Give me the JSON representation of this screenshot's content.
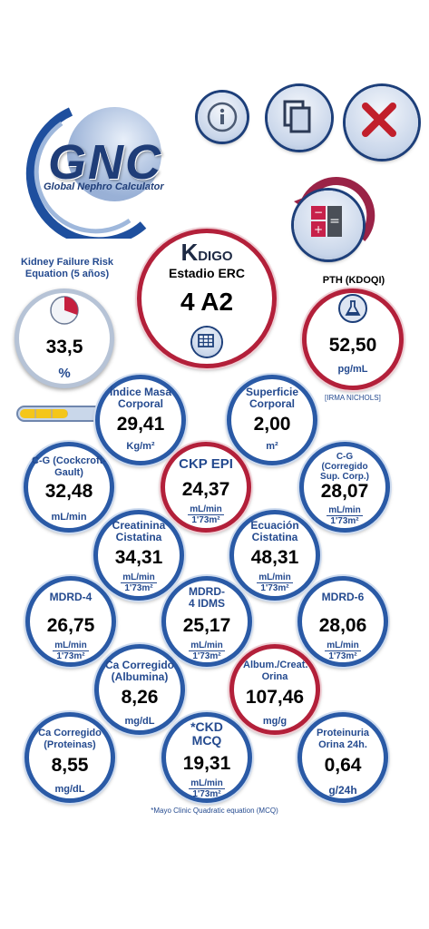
{
  "logo": {
    "acronym": "GNC",
    "name": "Global Nephro Calculator"
  },
  "header_buttons": {
    "info": "info-icon",
    "copy": "copy-icon",
    "close": "close-icon"
  },
  "kfre": {
    "label": "Kidney Failure Risk Equation (5 años)",
    "value": "33,5",
    "unit": "%"
  },
  "kdigo": {
    "logo_k": "K",
    "logo_rest": "DIGO",
    "subtitle": "Estadio ERC",
    "value": "4 A2"
  },
  "pth": {
    "label": "PTH (KDOQI)",
    "value": "52,50",
    "unit": "pg/mL",
    "note": "[IRMA NICHOLS]"
  },
  "imc": {
    "title": "Índice Masa Corporal",
    "value": "29,41",
    "unit": "Kg/m²",
    "bar_level": 0.6
  },
  "superficie": {
    "title": "Superficie Corporal",
    "value": "2,00",
    "unit": "m²"
  },
  "cg": {
    "title": "C-G (Cockcroft-Gault)",
    "value": "32,48",
    "unit": "mL/min"
  },
  "ckp": {
    "title": "CKP EPI",
    "value": "24,37",
    "unit_top": "mL/min",
    "unit_bottom": "1'73m²"
  },
  "cg_corr": {
    "title": "C-G (Corregido Sup. Corp.)",
    "value": "28,07",
    "unit_top": "mL/min",
    "unit_bottom": "1'73m²"
  },
  "creat_cist": {
    "title": "Creatinina Cistatina",
    "value": "34,31",
    "unit_top": "mL/min",
    "unit_bottom": "1'73m²"
  },
  "ec_cist": {
    "title": "Ecuación Cistatina",
    "value": "48,31",
    "unit_top": "mL/min",
    "unit_bottom": "1'73m²"
  },
  "mdrd4": {
    "title": "MDRD-4",
    "value": "26,75",
    "unit_top": "mL/min",
    "unit_bottom": "1'73m²"
  },
  "mdrd4_idms": {
    "title": "MDRD-4 IDMS",
    "value": "25,17",
    "unit_top": "mL/min",
    "unit_bottom": "1'73m²"
  },
  "mdrd6": {
    "title": "MDRD-6",
    "value": "28,06",
    "unit_top": "mL/min",
    "unit_bottom": "1'73m²"
  },
  "ca_alb": {
    "title": "Ca Corregido (Albumina)",
    "value": "8,26",
    "unit": "mg/dL"
  },
  "alb_creat": {
    "title": "Album./Creat. Orina",
    "value": "107,46",
    "unit": "mg/g"
  },
  "ca_prot": {
    "title": "Ca Corregido (Proteinas)",
    "value": "8,55",
    "unit": "mg/dL"
  },
  "ckd_mcq": {
    "title": "*CKD MCQ",
    "value": "19,31",
    "unit_top": "mL/min",
    "unit_bottom": "1'73m²"
  },
  "proteinuria": {
    "title": "Proteinuria Orina 24h.",
    "value": "0,64",
    "unit": "g/24h"
  },
  "footnote": "*Mayo Clinic Quadratic equation (MCQ)"
}
